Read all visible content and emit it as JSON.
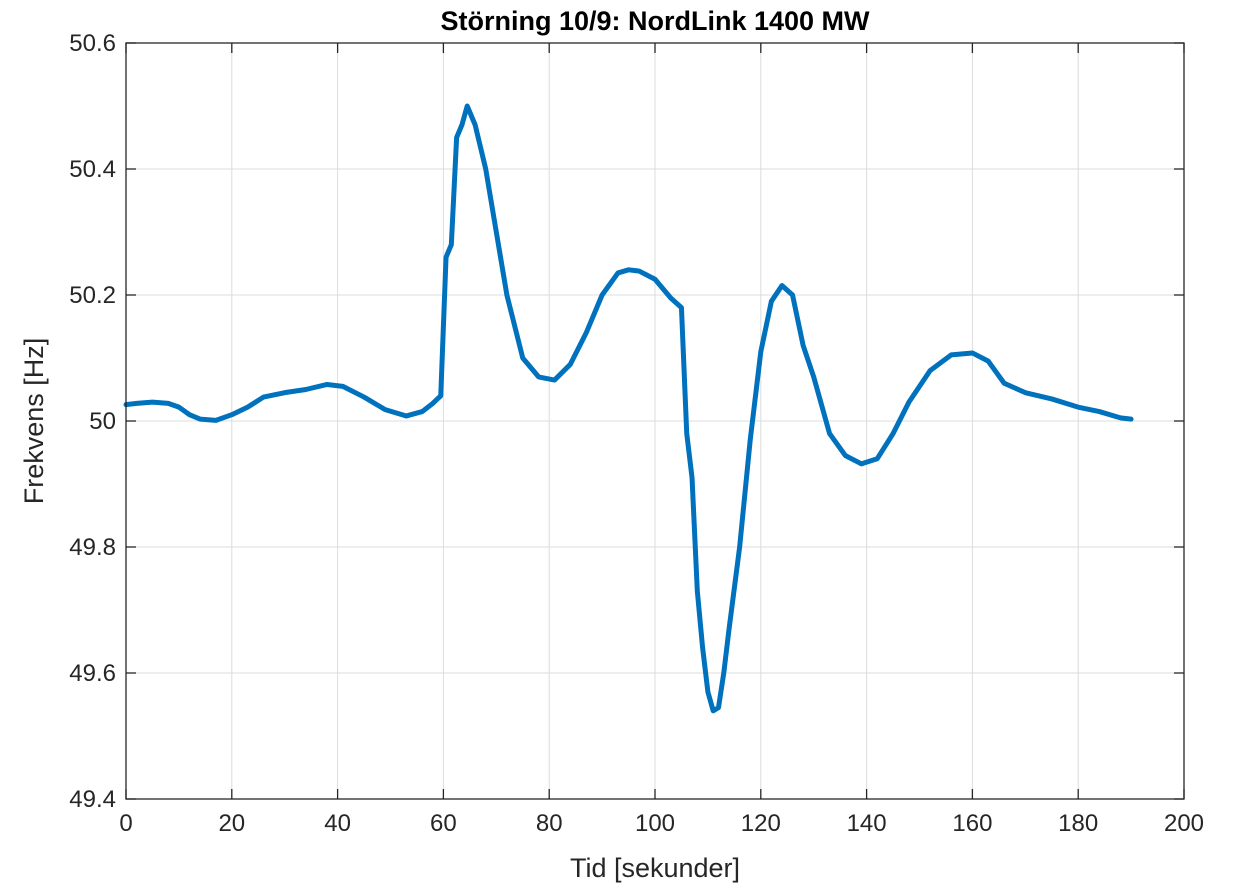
{
  "chart_data": {
    "type": "line",
    "title": "Störning 10/9: NordLink 1400 MW",
    "xlabel": "Tid [sekunder]",
    "ylabel": "Frekvens [Hz]",
    "xlim": [
      0,
      200
    ],
    "ylim": [
      49.4,
      50.6
    ],
    "xticks": [
      0,
      20,
      40,
      60,
      80,
      100,
      120,
      140,
      160,
      180,
      200
    ],
    "xtick_labels": [
      "0",
      "20",
      "40",
      "60",
      "80",
      "100",
      "120",
      "140",
      "160",
      "180",
      "200"
    ],
    "yticks": [
      49.4,
      49.6,
      49.8,
      50,
      50.2,
      50.4,
      50.6
    ],
    "ytick_labels": [
      "49.4",
      "49.6",
      "49.8",
      "50",
      "50.2",
      "50.4",
      "50.6"
    ],
    "grid": true,
    "line_color": "#0072BD",
    "series": [
      {
        "x": [
          0,
          2,
          5,
          8,
          10,
          12,
          14,
          17,
          20,
          23,
          26,
          30,
          34,
          38,
          41,
          45,
          49,
          53,
          56,
          58,
          59.5,
          60.5,
          61.5,
          62.5,
          63.5,
          64.5,
          66,
          68,
          70,
          72,
          75,
          78,
          81,
          84,
          87,
          90,
          93,
          95,
          97,
          100,
          103,
          105,
          106,
          107,
          108,
          109,
          110,
          111,
          112,
          113,
          114,
          116,
          118,
          120,
          122,
          124,
          126,
          128,
          130,
          133,
          136,
          139,
          142,
          145,
          148,
          152,
          156,
          160,
          163,
          166,
          170,
          175,
          180,
          184,
          188,
          190
        ],
        "y": [
          50.026,
          50.028,
          50.03,
          50.028,
          50.022,
          50.01,
          50.003,
          50.001,
          50.01,
          50.022,
          50.038,
          50.045,
          50.05,
          50.058,
          50.055,
          50.038,
          50.018,
          50.008,
          50.015,
          50.028,
          50.04,
          50.26,
          50.28,
          50.45,
          50.47,
          50.5,
          50.47,
          50.4,
          50.3,
          50.2,
          50.1,
          50.07,
          50.065,
          50.09,
          50.14,
          50.2,
          50.235,
          50.24,
          50.238,
          50.225,
          50.195,
          50.18,
          49.98,
          49.91,
          49.73,
          49.64,
          49.57,
          49.54,
          49.545,
          49.6,
          49.67,
          49.8,
          49.97,
          50.11,
          50.19,
          50.215,
          50.2,
          50.12,
          50.07,
          49.98,
          49.945,
          49.932,
          49.94,
          49.98,
          50.03,
          50.08,
          50.105,
          50.108,
          50.095,
          50.06,
          50.045,
          50.035,
          50.022,
          50.015,
          50.005,
          50.003
        ]
      }
    ]
  }
}
